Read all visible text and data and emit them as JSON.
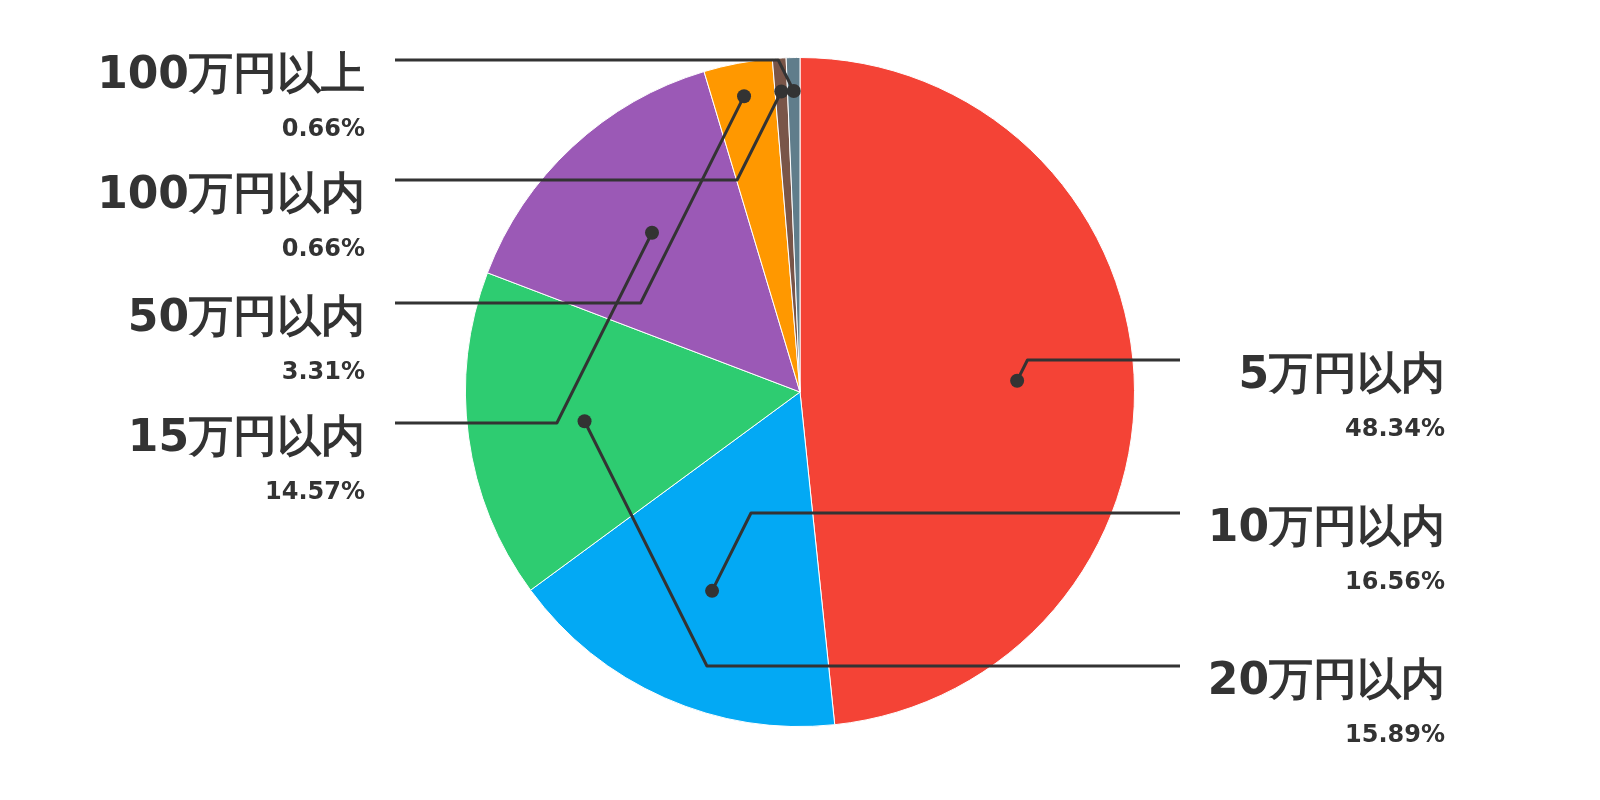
{
  "chart_data": {
    "type": "pie",
    "categories": [
      "5万円以内",
      "10万円以内",
      "20万円以内",
      "15万円以内",
      "50万円以内",
      "100万円以内",
      "100万円以上"
    ],
    "values": [
      48.34,
      16.56,
      15.89,
      14.57,
      3.31,
      0.66,
      0.66
    ],
    "value_labels": [
      "48.34%",
      "16.56%",
      "15.89%",
      "14.57%",
      "3.31%",
      "0.66%",
      "0.66%"
    ],
    "colors": [
      "#f44336",
      "#03a9f4",
      "#2ecc71",
      "#9b59b6",
      "#ff9800",
      "#795548",
      "#607d8b"
    ],
    "legend": false
  }
}
